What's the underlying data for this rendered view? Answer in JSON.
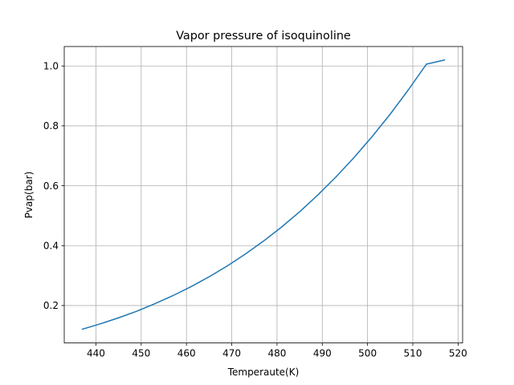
{
  "chart_data": {
    "type": "line",
    "title": "Vapor pressure of isoquinoline",
    "xlabel": "Temperaute(K)",
    "ylabel": "Pvap(bar)",
    "xlim": [
      433,
      521
    ],
    "ylim": [
      0.075,
      1.065
    ],
    "xticks": [
      440,
      450,
      460,
      470,
      480,
      490,
      500,
      510,
      520
    ],
    "yticks": [
      0.2,
      0.4,
      0.6,
      0.8,
      1.0
    ],
    "xtick_labels": [
      "440",
      "450",
      "460",
      "470",
      "480",
      "490",
      "500",
      "510",
      "520"
    ],
    "ytick_labels": [
      "0.2",
      "0.4",
      "0.6",
      "0.8",
      "1.0"
    ],
    "grid": true,
    "line_color": "#1f77b4",
    "series": [
      {
        "x": [
          437,
          441,
          445,
          449,
          453,
          457,
          461,
          465,
          469,
          473,
          477,
          481,
          485,
          489,
          493,
          497,
          501,
          505,
          509,
          513,
          517
        ],
        "y": [
          0.121,
          0.139,
          0.159,
          0.181,
          0.206,
          0.233,
          0.263,
          0.296,
          0.332,
          0.372,
          0.415,
          0.462,
          0.513,
          0.569,
          0.629,
          0.694,
          0.764,
          0.839,
          0.92,
          1.006,
          1.02
        ]
      }
    ]
  }
}
